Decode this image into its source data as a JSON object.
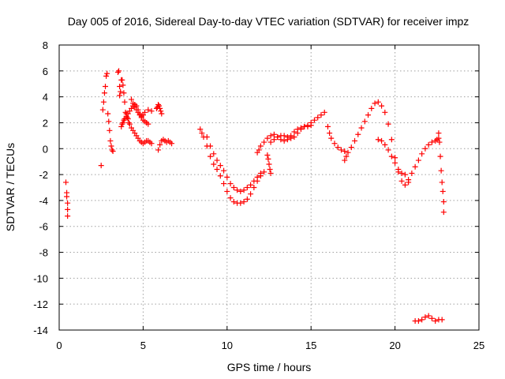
{
  "chart_data": {
    "type": "scatter",
    "title": "Day 005 of 2016, Sidereal Day-to-day VTEC variation (SDTVAR) for receiver impz",
    "xlabel": "GPS time / hours",
    "ylabel": "SDTVAR / TECUs",
    "xlim": [
      0,
      25
    ],
    "ylim": [
      -14,
      8
    ],
    "xticks": [
      0,
      5,
      10,
      15,
      20,
      25
    ],
    "yticks": [
      8,
      6,
      4,
      2,
      0,
      -2,
      -4,
      -6,
      -8,
      -10,
      -12,
      -14
    ],
    "xtick_labels": [
      "0",
      "5",
      "10",
      "15",
      "20",
      "25"
    ],
    "ytick_labels": [
      "8",
      "6",
      "4",
      "2",
      "0",
      "-2",
      "-4",
      "-6",
      "-8",
      "-10",
      "-12",
      "-14"
    ],
    "grid": true,
    "marker": "+",
    "color": "#ff0000",
    "series": [
      {
        "name": "SDTVAR",
        "x": [
          0.4,
          0.45,
          0.45,
          0.5,
          0.5,
          0.5,
          2.5,
          2.6,
          2.65,
          2.7,
          2.75,
          2.8,
          2.85,
          2.9,
          2.95,
          3.0,
          3.05,
          3.1,
          3.15,
          3.2,
          3.5,
          3.55,
          3.6,
          3.6,
          3.65,
          3.7,
          3.75,
          3.8,
          3.85,
          3.9,
          3.95,
          4.0,
          4.05,
          4.1,
          4.15,
          4.2,
          3.7,
          3.75,
          3.8,
          3.85,
          3.9,
          4.0,
          4.1,
          4.2,
          4.3,
          4.4,
          4.5,
          4.6,
          4.7,
          4.8,
          4.9,
          5.0,
          5.1,
          5.3,
          5.5,
          4.3,
          4.4,
          4.5,
          4.6,
          4.7,
          4.8,
          4.9,
          5.0,
          5.1,
          5.2,
          5.3,
          5.4,
          5.5,
          4.3,
          4.4,
          4.5,
          4.6,
          4.7,
          4.8,
          4.9,
          5.0,
          5.1,
          5.2,
          5.3,
          5.8,
          5.85,
          5.9,
          5.95,
          6.0,
          6.05,
          6.1,
          5.9,
          6.0,
          6.1,
          6.2,
          6.3,
          6.4,
          6.5,
          6.6,
          6.7,
          8.4,
          8.5,
          8.6,
          8.8,
          9.0,
          9.2,
          9.4,
          9.6,
          9.8,
          10.0,
          10.2,
          10.4,
          10.6,
          10.8,
          11.0,
          11.2,
          11.4,
          11.6,
          11.8,
          12.0,
          12.2,
          8.8,
          9.0,
          9.2,
          9.4,
          9.6,
          9.8,
          10.0,
          10.2,
          10.4,
          10.6,
          10.8,
          11.0,
          11.2,
          11.4,
          11.6,
          11.8,
          12.0,
          12.4,
          12.45,
          12.5,
          12.55,
          12.6,
          11.8,
          11.9,
          12.0,
          12.2,
          12.4,
          12.6,
          12.8,
          13.0,
          13.2,
          13.4,
          13.6,
          13.8,
          14.0,
          14.2,
          14.4,
          14.6,
          14.8,
          15.0,
          15.2,
          15.4,
          15.6,
          15.8,
          12.6,
          12.8,
          13.0,
          13.2,
          13.4,
          13.6,
          13.8,
          14.0,
          14.2,
          14.4,
          14.6,
          14.8,
          15.0,
          16.0,
          16.1,
          16.2,
          16.4,
          16.6,
          16.8,
          17.0,
          17.0,
          17.1,
          17.2,
          17.4,
          17.6,
          17.8,
          18.0,
          18.2,
          18.4,
          18.6,
          18.8,
          19.0,
          19.2,
          19.4,
          19.6,
          19.8,
          20.0,
          20.2,
          20.4,
          20.6,
          20.8,
          19.0,
          19.2,
          19.4,
          19.6,
          19.8,
          20.0,
          20.2,
          20.4,
          20.6,
          20.8,
          21.0,
          21.2,
          21.4,
          21.6,
          21.8,
          22.0,
          22.2,
          22.4,
          22.5,
          22.6,
          22.6,
          22.65,
          22.7,
          22.75,
          22.8,
          22.85,
          22.9,
          22.9,
          21.2,
          21.4,
          21.6,
          21.8,
          22.0,
          22.2,
          22.4,
          22.6,
          22.8
        ],
        "y": [
          -2.6,
          -3.4,
          -3.7,
          -4.2,
          -4.7,
          -5.2,
          -1.3,
          3.0,
          3.6,
          4.3,
          4.8,
          5.6,
          5.8,
          2.7,
          2.1,
          1.4,
          0.6,
          0.2,
          -0.1,
          -0.2,
          5.9,
          6.0,
          4.8,
          4.1,
          4.4,
          5.3,
          5.3,
          4.9,
          4.3,
          3.6,
          2.8,
          2.7,
          2.4,
          2.3,
          2.0,
          1.9,
          1.7,
          1.9,
          2.0,
          2.2,
          2.3,
          2.5,
          2.7,
          2.9,
          3.1,
          3.3,
          3.4,
          3.3,
          3.0,
          2.7,
          2.5,
          2.6,
          2.8,
          3.0,
          2.9,
          1.6,
          1.4,
          1.2,
          1.0,
          0.8,
          0.6,
          0.5,
          0.4,
          0.5,
          0.6,
          0.6,
          0.5,
          0.4,
          3.8,
          3.5,
          3.2,
          3.0,
          2.8,
          2.6,
          2.4,
          2.2,
          2.1,
          2.0,
          1.9,
          3.1,
          3.2,
          3.4,
          3.3,
          3.1,
          2.9,
          2.7,
          -0.1,
          0.3,
          0.6,
          0.7,
          0.6,
          0.5,
          0.6,
          0.5,
          0.4,
          1.5,
          1.2,
          0.9,
          0.2,
          -0.6,
          -1.2,
          -1.6,
          -2.1,
          -2.7,
          -3.3,
          -3.8,
          -4.1,
          -4.2,
          -4.2,
          -4.1,
          -3.9,
          -3.5,
          -3.0,
          -2.5,
          -2.1,
          -1.8,
          0.9,
          0.2,
          -0.4,
          -0.9,
          -1.3,
          -1.7,
          -2.2,
          -2.7,
          -3.0,
          -3.2,
          -3.3,
          -3.2,
          -3.0,
          -2.8,
          -2.5,
          -2.2,
          -1.9,
          -0.5,
          -0.8,
          -1.2,
          -1.6,
          -1.9,
          -0.3,
          -0.1,
          0.2,
          0.5,
          0.8,
          1.0,
          1.1,
          0.9,
          0.7,
          0.6,
          0.7,
          1.0,
          1.3,
          1.5,
          1.6,
          1.7,
          1.8,
          2.0,
          2.2,
          2.4,
          2.6,
          2.8,
          0.5,
          0.7,
          0.9,
          1.0,
          1.0,
          0.9,
          0.8,
          0.9,
          1.2,
          1.5,
          1.7,
          1.7,
          1.8,
          1.7,
          1.2,
          0.8,
          0.4,
          0.1,
          -0.1,
          -0.2,
          -0.9,
          -0.6,
          -0.3,
          0.1,
          0.6,
          1.1,
          1.6,
          2.1,
          2.6,
          3.1,
          3.5,
          3.6,
          3.3,
          2.8,
          1.9,
          0.7,
          -0.7,
          -1.8,
          -2.5,
          -2.8,
          -2.6,
          0.7,
          0.6,
          0.3,
          -0.1,
          -0.6,
          -1.1,
          -1.6,
          -1.9,
          -2.0,
          -2.4,
          -1.9,
          -1.4,
          -0.9,
          -0.4,
          0.0,
          0.3,
          0.5,
          0.6,
          0.7,
          0.8,
          1.2,
          0.5,
          -0.6,
          -1.7,
          -2.6,
          -3.3,
          -4.1,
          -4.9,
          -13.3,
          -13.3,
          -13.2,
          -13.0,
          -12.9,
          -13.1,
          -13.3,
          -13.2,
          -13.2
        ]
      }
    ]
  }
}
